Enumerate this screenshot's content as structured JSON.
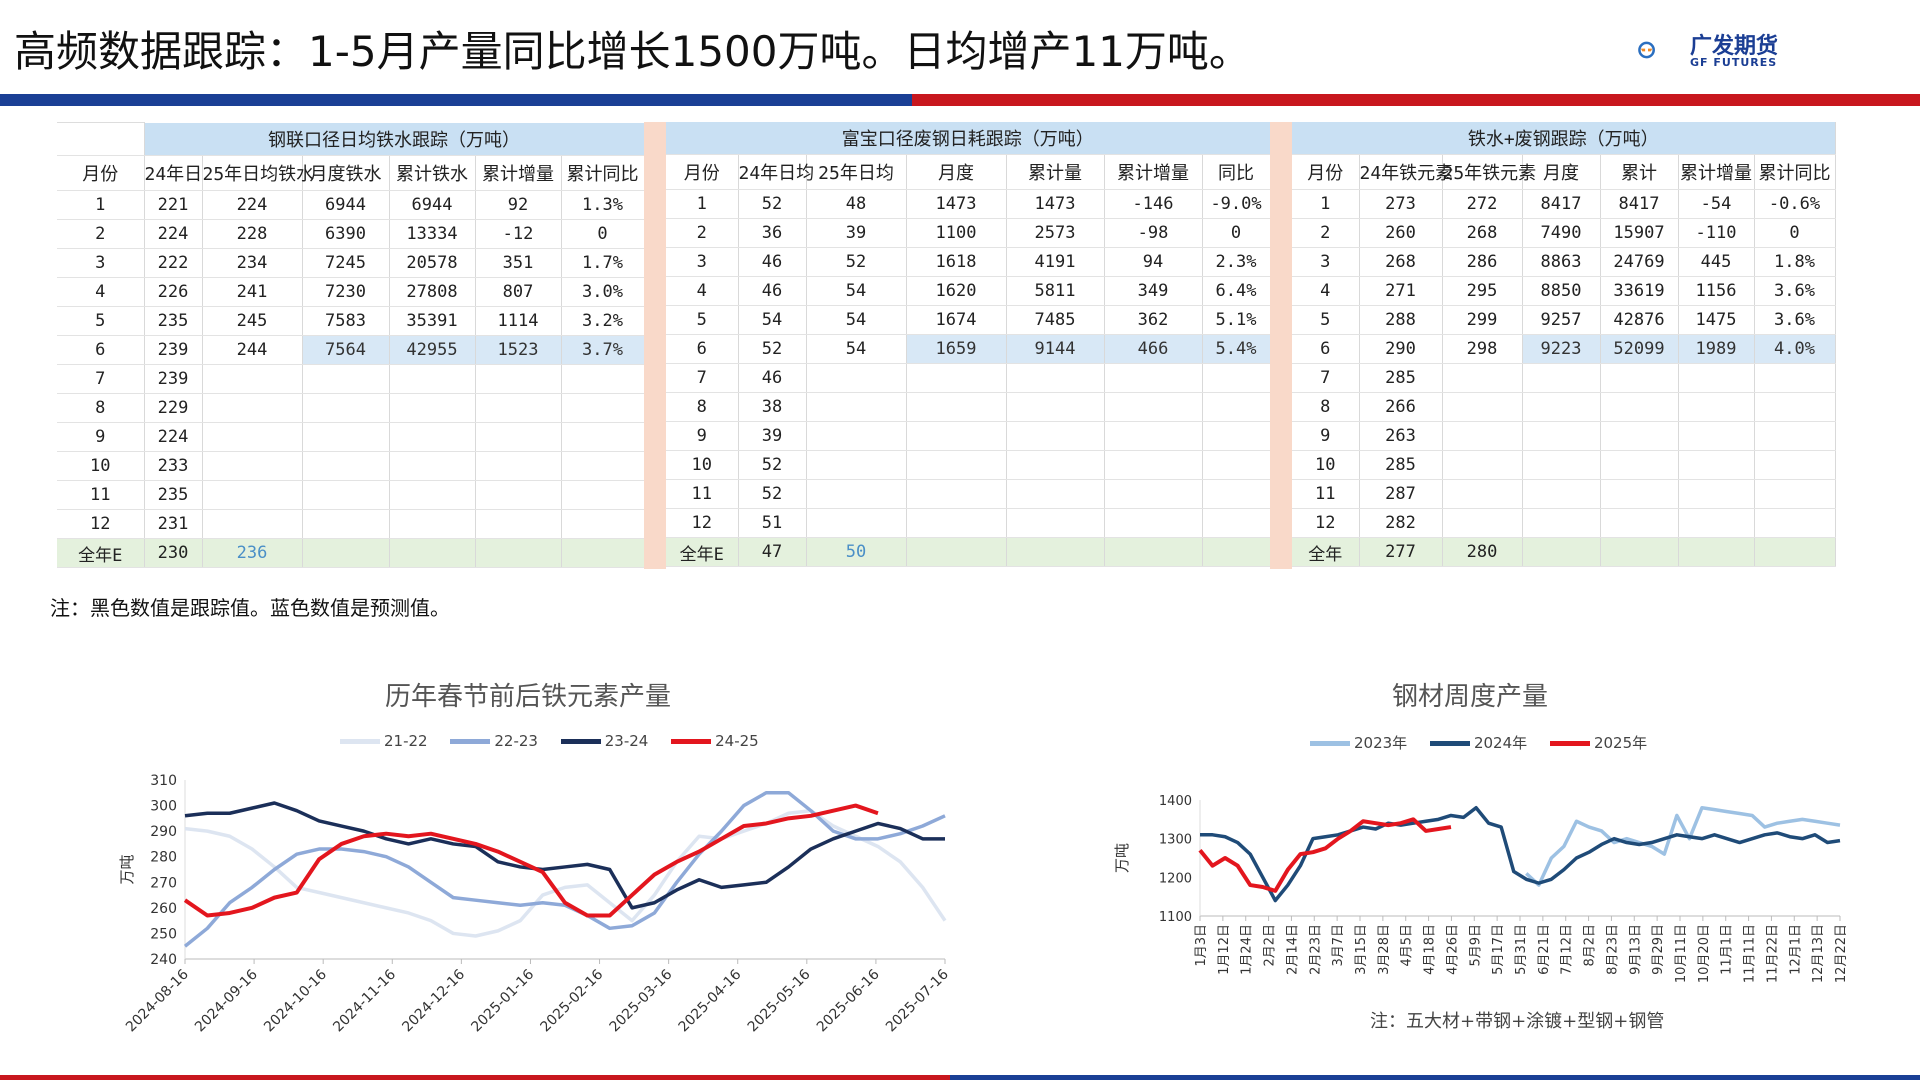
{
  "header": {
    "title": "高频数据跟踪：1-5月产量同比增长1500万吨。日均增产11万吨。",
    "logo_cn": "广发期货",
    "logo_en": "GF FUTURES",
    "colors": {
      "blue": "#1a3f95",
      "red": "#c8171e",
      "logo_orange": "#f08a24",
      "logo_blue": "#2b6fc0"
    }
  },
  "tables": {
    "t1": {
      "title": "钢联口径日均铁水跟踪（万吨）",
      "headers": [
        "月份",
        "24年日",
        "25年日均铁水",
        "月度铁水",
        "累计铁水",
        "累计增量",
        "累计同比"
      ],
      "rows": [
        [
          "1",
          "221",
          "224",
          "6944",
          "6944",
          "92",
          "1.3%"
        ],
        [
          "2",
          "224",
          "228",
          "6390",
          "13334",
          "-12",
          "0"
        ],
        [
          "3",
          "222",
          "234",
          "7245",
          "20578",
          "351",
          "1.7%"
        ],
        [
          "4",
          "226",
          "241",
          "7230",
          "27808",
          "807",
          "3.0%"
        ],
        [
          "5",
          "235",
          "245",
          "7583",
          "35391",
          "1114",
          "3.2%"
        ],
        [
          "6",
          "239",
          "244",
          "7564",
          "42955",
          "1523",
          "3.7%"
        ],
        [
          "7",
          "239",
          "",
          "",
          "",
          "",
          ""
        ],
        [
          "8",
          "229",
          "",
          "",
          "",
          "",
          ""
        ],
        [
          "9",
          "224",
          "",
          "",
          "",
          "",
          ""
        ],
        [
          "10",
          "233",
          "",
          "",
          "",
          "",
          ""
        ],
        [
          "11",
          "235",
          "",
          "",
          "",
          "",
          ""
        ],
        [
          "12",
          "231",
          "",
          "",
          "",
          "",
          ""
        ]
      ],
      "total": [
        "全年E",
        "230",
        "236",
        "",
        "",
        "",
        ""
      ]
    },
    "t2": {
      "title": "富宝口径废钢日耗跟踪（万吨）",
      "headers": [
        "月份",
        "24年日均",
        "25年日均",
        "月度",
        "累计量",
        "累计增量",
        "同比"
      ],
      "rows": [
        [
          "1",
          "52",
          "48",
          "1473",
          "1473",
          "-146",
          "-9.0%"
        ],
        [
          "2",
          "36",
          "39",
          "1100",
          "2573",
          "-98",
          "0"
        ],
        [
          "3",
          "46",
          "52",
          "1618",
          "4191",
          "94",
          "2.3%"
        ],
        [
          "4",
          "46",
          "54",
          "1620",
          "5811",
          "349",
          "6.4%"
        ],
        [
          "5",
          "54",
          "54",
          "1674",
          "7485",
          "362",
          "5.1%"
        ],
        [
          "6",
          "52",
          "54",
          "1659",
          "9144",
          "466",
          "5.4%"
        ],
        [
          "7",
          "46",
          "",
          "",
          "",
          "",
          ""
        ],
        [
          "8",
          "38",
          "",
          "",
          "",
          "",
          ""
        ],
        [
          "9",
          "39",
          "",
          "",
          "",
          "",
          ""
        ],
        [
          "10",
          "52",
          "",
          "",
          "",
          "",
          ""
        ],
        [
          "11",
          "52",
          "",
          "",
          "",
          "",
          ""
        ],
        [
          "12",
          "51",
          "",
          "",
          "",
          "",
          ""
        ]
      ],
      "total": [
        "全年E",
        "47",
        "50",
        "",
        "",
        "",
        ""
      ]
    },
    "t3": {
      "title": "铁水+废钢跟踪（万吨）",
      "headers": [
        "月份",
        "24年铁元素",
        "25年铁元素",
        "月度",
        "累计",
        "累计增量",
        "累计同比"
      ],
      "rows": [
        [
          "1",
          "273",
          "272",
          "8417",
          "8417",
          "-54",
          "-0.6%"
        ],
        [
          "2",
          "260",
          "268",
          "7490",
          "15907",
          "-110",
          "0"
        ],
        [
          "3",
          "268",
          "286",
          "8863",
          "24769",
          "445",
          "1.8%"
        ],
        [
          "4",
          "271",
          "295",
          "8850",
          "33619",
          "1156",
          "3.6%"
        ],
        [
          "5",
          "288",
          "299",
          "9257",
          "42876",
          "1475",
          "3.6%"
        ],
        [
          "6",
          "290",
          "298",
          "9223",
          "52099",
          "1989",
          "4.0%"
        ],
        [
          "7",
          "285",
          "",
          "",
          "",
          "",
          ""
        ],
        [
          "8",
          "266",
          "",
          "",
          "",
          "",
          ""
        ],
        [
          "9",
          "263",
          "",
          "",
          "",
          "",
          ""
        ],
        [
          "10",
          "285",
          "",
          "",
          "",
          "",
          ""
        ],
        [
          "11",
          "287",
          "",
          "",
          "",
          "",
          ""
        ],
        [
          "12",
          "282",
          "",
          "",
          "",
          "",
          ""
        ]
      ],
      "total": [
        "全年",
        "277",
        "280",
        "",
        "",
        "",
        ""
      ]
    }
  },
  "note1": "注：黑色数值是跟踪值。蓝色数值是预测值。",
  "chart_data": [
    {
      "type": "line",
      "title": "历年春节前后铁元素产量",
      "ylabel": "万吨",
      "ylim": [
        240,
        310
      ],
      "yticks": [
        240,
        250,
        260,
        270,
        280,
        290,
        300,
        310
      ],
      "x_tick_labels": [
        "2024-08-16",
        "2024-09-16",
        "2024-10-16",
        "2024-11-16",
        "2024-12-16",
        "2025-01-16",
        "2025-02-16",
        "2025-03-16",
        "2025-04-16",
        "2025-05-16",
        "2025-06-16",
        "2025-07-16"
      ],
      "x_range_days": [
        0,
        340
      ],
      "legend_position": "top",
      "grid": false,
      "series": [
        {
          "name": "21-22",
          "color": "#dde5f1",
          "x": [
            0,
            10,
            20,
            30,
            40,
            50,
            60,
            70,
            80,
            90,
            100,
            110,
            120,
            130,
            140,
            150,
            160,
            170,
            180,
            190,
            200,
            210,
            220,
            230,
            240,
            250,
            260,
            270,
            280,
            290,
            300,
            310,
            320,
            330,
            340
          ],
          "values": [
            291,
            290,
            288,
            283,
            276,
            268,
            266,
            264,
            262,
            260,
            258,
            255,
            250,
            249,
            251,
            255,
            265,
            268,
            269,
            262,
            255,
            265,
            278,
            288,
            287,
            290,
            293,
            297,
            298,
            292,
            288,
            284,
            278,
            268,
            255
          ]
        },
        {
          "name": "22-23",
          "color": "#8ea9d8",
          "x": [
            0,
            10,
            20,
            30,
            40,
            50,
            60,
            70,
            80,
            90,
            100,
            110,
            120,
            130,
            140,
            150,
            160,
            170,
            180,
            190,
            200,
            210,
            220,
            230,
            240,
            250,
            260,
            270,
            280,
            290,
            300,
            310,
            320,
            330,
            340
          ],
          "values": [
            245,
            252,
            262,
            268,
            275,
            281,
            283,
            283,
            282,
            280,
            276,
            270,
            264,
            263,
            262,
            261,
            262,
            261,
            257,
            252,
            253,
            258,
            270,
            281,
            290,
            300,
            305,
            305,
            298,
            290,
            287,
            287,
            289,
            292,
            296
          ]
        },
        {
          "name": "23-24",
          "color": "#1b2f59",
          "x": [
            0,
            10,
            20,
            30,
            40,
            50,
            60,
            70,
            80,
            90,
            100,
            110,
            120,
            130,
            140,
            150,
            160,
            170,
            180,
            190,
            200,
            210,
            220,
            230,
            240,
            250,
            260,
            270,
            280,
            290,
            300,
            310,
            320,
            330,
            340
          ],
          "values": [
            296,
            297,
            297,
            299,
            301,
            298,
            294,
            292,
            290,
            287,
            285,
            287,
            285,
            284,
            278,
            276,
            275,
            276,
            277,
            275,
            260,
            262,
            267,
            271,
            268,
            269,
            270,
            276,
            283,
            287,
            290,
            293,
            291,
            287,
            287
          ]
        },
        {
          "name": "24-25",
          "color": "#e3161e",
          "x": [
            0,
            10,
            20,
            30,
            40,
            50,
            60,
            70,
            80,
            90,
            100,
            110,
            120,
            130,
            140,
            150,
            160,
            170,
            180,
            190,
            200,
            210,
            220,
            230,
            240,
            250,
            260,
            270,
            280,
            290,
            300,
            310
          ],
          "values": [
            263,
            257,
            258,
            260,
            264,
            266,
            279,
            285,
            288,
            289,
            288,
            289,
            287,
            285,
            282,
            278,
            274,
            262,
            257,
            257,
            265,
            273,
            278,
            282,
            287,
            292,
            293,
            295,
            296,
            298,
            300,
            297
          ]
        }
      ]
    },
    {
      "type": "line",
      "title": "钢材周度产量",
      "ylabel": "万吨",
      "ylim": [
        1100,
        1400
      ],
      "yticks": [
        1100,
        1200,
        1300,
        1400
      ],
      "x_tick_labels": [
        "1月3日",
        "1月12日",
        "1月24日",
        "2月2日",
        "2月14日",
        "2月23日",
        "3月7日",
        "3月15日",
        "3月28日",
        "4月5日",
        "4月18日",
        "4月26日",
        "5月9日",
        "5月17日",
        "5月31日",
        "6月21日",
        "7月12日",
        "8月2日",
        "8月23日",
        "9月13日",
        "9月29日",
        "10月11日",
        "10月20日",
        "11月1日",
        "11月11日",
        "11月22日",
        "12月1日",
        "12月13日",
        "12月22日"
      ],
      "x_range_weeks": [
        0,
        51
      ],
      "legend_position": "top",
      "grid": false,
      "series": [
        {
          "name": "2023年",
          "color": "#9dc1e3",
          "x": [
            26,
            27,
            28,
            29,
            30,
            31,
            32,
            33,
            34,
            35,
            36,
            37,
            38,
            39,
            40,
            41,
            42,
            43,
            44,
            45,
            46,
            47,
            48,
            49,
            50,
            51
          ],
          "values": [
            1210,
            1180,
            1250,
            1280,
            1345,
            1330,
            1320,
            1290,
            1300,
            1290,
            1280,
            1260,
            1360,
            1300,
            1380,
            1375,
            1370,
            1365,
            1360,
            1330,
            1340,
            1345,
            1350,
            1345,
            1340,
            1335
          ]
        },
        {
          "name": "2024年",
          "color": "#1f4b78",
          "x": [
            0,
            1,
            2,
            3,
            4,
            5,
            6,
            7,
            8,
            9,
            10,
            11,
            12,
            13,
            14,
            15,
            16,
            17,
            18,
            19,
            20,
            21,
            22,
            23,
            24,
            25,
            26,
            27,
            28,
            29,
            30,
            31,
            32,
            33,
            34,
            35,
            36,
            37,
            38,
            39,
            40,
            41,
            42,
            43,
            44,
            45,
            46,
            47,
            48,
            49,
            50,
            51
          ],
          "values": [
            1310,
            1310,
            1305,
            1290,
            1260,
            1200,
            1140,
            1180,
            1230,
            1300,
            1305,
            1310,
            1320,
            1330,
            1325,
            1340,
            1335,
            1340,
            1345,
            1350,
            1360,
            1355,
            1380,
            1340,
            1330,
            1215,
            1195,
            1185,
            1195,
            1220,
            1250,
            1265,
            1285,
            1300,
            1290,
            1285,
            1290,
            1300,
            1310,
            1305,
            1300,
            1310,
            1300,
            1290,
            1300,
            1310,
            1315,
            1305,
            1300,
            1310,
            1290,
            1295
          ]
        },
        {
          "name": "2025年",
          "color": "#e3161e",
          "x": [
            0,
            1,
            2,
            3,
            4,
            5,
            6,
            7,
            8,
            9,
            10,
            11,
            12,
            13,
            14,
            15,
            16,
            17,
            18,
            19,
            20
          ],
          "values": [
            1270,
            1230,
            1250,
            1230,
            1180,
            1175,
            1165,
            1220,
            1260,
            1265,
            1275,
            1300,
            1320,
            1345,
            1340,
            1335,
            1340,
            1350,
            1320,
            1325,
            1330
          ]
        }
      ]
    }
  ],
  "note2": "注：五大材+带钢+涂镀+型钢+钢管"
}
